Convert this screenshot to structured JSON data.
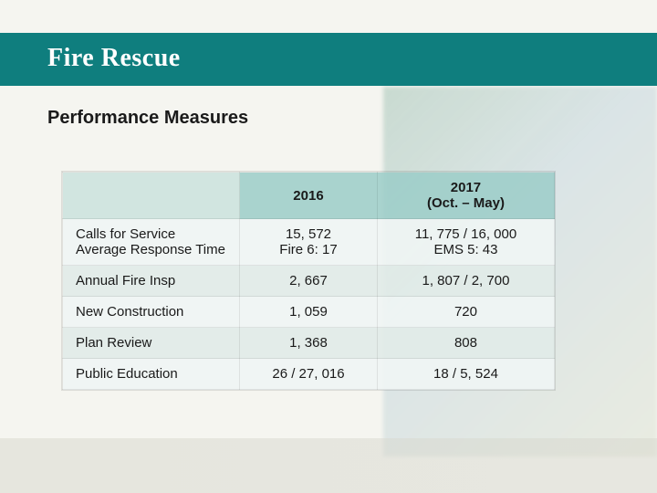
{
  "slide": {
    "title": "Fire Rescue",
    "subtitle": "Performance Measures",
    "colors": {
      "header_bg": "#0f7e7e",
      "header_text": "#ffffff",
      "table_header_bg": "#9bcdc8",
      "table_row_odd": "#f0f5f4",
      "table_row_even": "#e1ebe8",
      "text": "#1a1a1a"
    },
    "fonts": {
      "title_family": "Georgia, serif",
      "title_size_pt": 21,
      "body_family": "Arial, sans-serif",
      "subtitle_size_pt": 15,
      "table_size_pt": 11
    }
  },
  "table": {
    "type": "table",
    "columns": [
      {
        "label": "",
        "width_pct": 36,
        "align": "left"
      },
      {
        "label": "2016",
        "width_pct": 28,
        "align": "center"
      },
      {
        "label": "2017\n(Oct. – May)",
        "width_pct": 36,
        "align": "center"
      }
    ],
    "rows": [
      {
        "label": "Calls for Service\nAverage Response Time",
        "y2016": "15, 572\nFire 6: 17",
        "y2017": "11, 775 / 16, 000\nEMS 5: 43"
      },
      {
        "label": "Annual Fire Insp",
        "y2016": "2, 667",
        "y2017": "1, 807 / 2, 700"
      },
      {
        "label": "New Construction",
        "y2016": "1, 059",
        "y2017": "720"
      },
      {
        "label": "Plan Review",
        "y2016": "1, 368",
        "y2017": "808"
      },
      {
        "label": "Public Education",
        "y2016": "26 / 27, 016",
        "y2017": "18 / 5, 524"
      }
    ]
  }
}
